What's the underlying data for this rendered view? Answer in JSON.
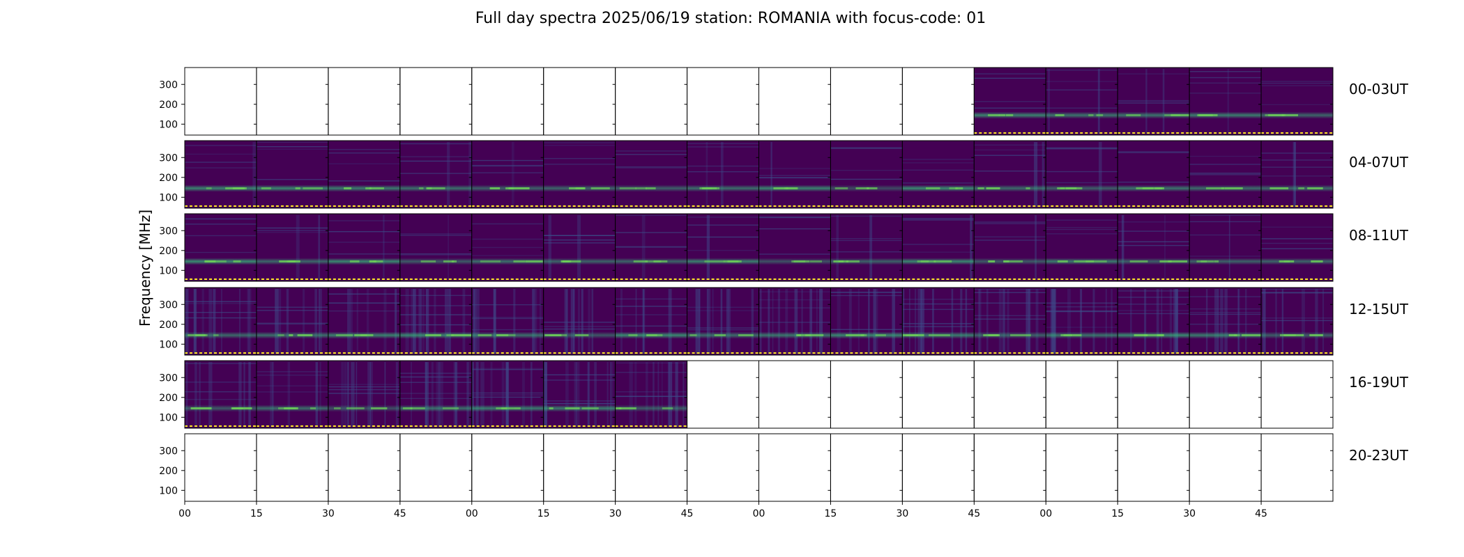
{
  "title": "Full day spectra 2025/06/19 station: ROMANIA with focus-code: 01",
  "colors": {
    "background": "#440154",
    "band": "#35b779",
    "highlight": "#fde725",
    "frame": "#000000"
  },
  "chart_data": {
    "type": "heatmap",
    "title": "Full day spectra 2025/06/19 station: ROMANIA with focus-code: 01",
    "ylabel": "Frequency [MHz]",
    "xlabel": "",
    "y_ticks": [
      100,
      200,
      300
    ],
    "ylim": [
      45,
      385
    ],
    "x_ticks": [
      "00",
      "15",
      "30",
      "45",
      "00",
      "15",
      "30",
      "45",
      "00",
      "15",
      "30",
      "45",
      "00",
      "15",
      "30",
      "45"
    ],
    "panels_per_row": 16,
    "minutes_per_panel": 15,
    "rows": [
      {
        "label": "00-03UT",
        "has_data": [
          false,
          false,
          false,
          false,
          false,
          false,
          false,
          false,
          false,
          false,
          false,
          true,
          true,
          true,
          true,
          true
        ]
      },
      {
        "label": "04-07UT",
        "has_data": [
          true,
          true,
          true,
          true,
          true,
          true,
          true,
          true,
          true,
          true,
          true,
          true,
          true,
          true,
          true,
          true
        ]
      },
      {
        "label": "08-11UT",
        "has_data": [
          true,
          true,
          true,
          true,
          true,
          true,
          true,
          true,
          true,
          true,
          true,
          true,
          true,
          true,
          true,
          true
        ]
      },
      {
        "label": "12-15UT",
        "has_data": [
          true,
          true,
          true,
          true,
          true,
          true,
          true,
          true,
          true,
          true,
          true,
          true,
          true,
          true,
          true,
          true
        ]
      },
      {
        "label": "16-19UT",
        "has_data": [
          true,
          true,
          true,
          true,
          true,
          true,
          true,
          false,
          false,
          false,
          false,
          false,
          false,
          false,
          false,
          false
        ]
      },
      {
        "label": "20-23UT",
        "has_data": [
          false,
          false,
          false,
          false,
          false,
          false,
          false,
          false,
          false,
          false,
          false,
          false,
          false,
          false,
          false,
          false
        ]
      }
    ],
    "dominant_band_mhz": 145,
    "grid": false
  }
}
